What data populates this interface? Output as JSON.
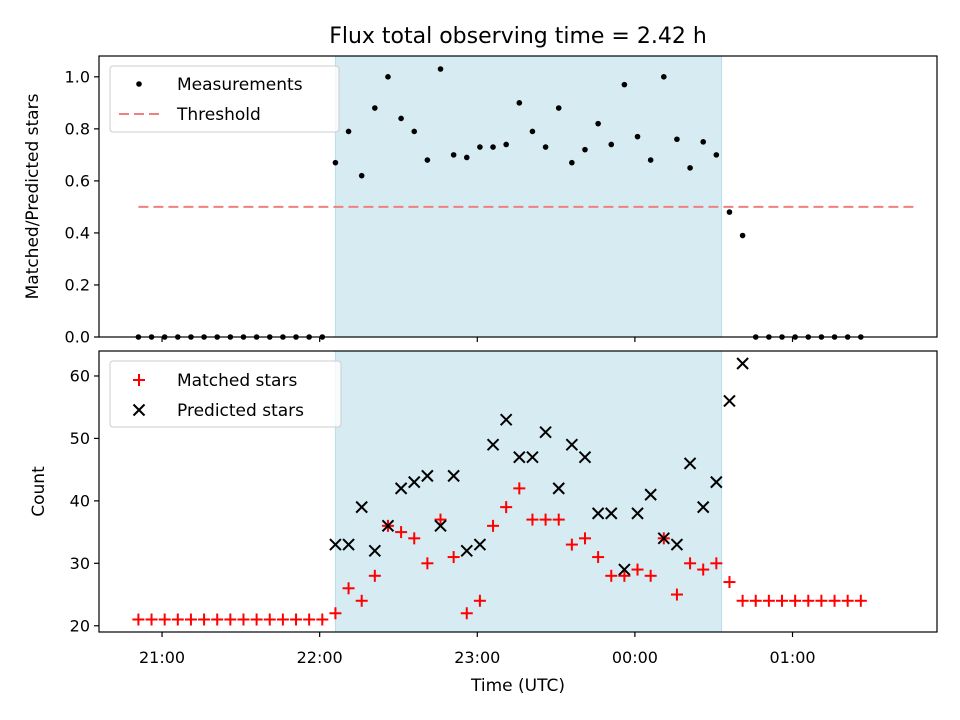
{
  "chart_data": [
    {
      "type": "scatter",
      "title": "Flux total observing time = 2.42 h",
      "xlabel": "",
      "ylabel": "Matched/Predicted stars",
      "x_range": [
        "20:36",
        "01:55"
      ],
      "ylim": [
        0,
        1.08
      ],
      "yticks": [
        "0.0",
        "0.2",
        "0.4",
        "0.6",
        "0.8",
        "1.0"
      ],
      "grid": false,
      "legend_position": "top-left",
      "shaded_span": [
        "22:06",
        "00:33"
      ],
      "threshold": {
        "name": "Threshold",
        "y": 0.5,
        "x_start": "20:51",
        "x_end": "01:46",
        "color": "#f08080"
      },
      "series": [
        {
          "name": "Measurements",
          "color": "#000000",
          "x": [
            "20:51",
            "20:56",
            "21:01",
            "21:06",
            "21:11",
            "21:16",
            "21:21",
            "21:26",
            "21:31",
            "21:36",
            "21:41",
            "21:46",
            "21:51",
            "21:56",
            "22:01",
            "22:06",
            "22:11",
            "22:16",
            "22:21",
            "22:26",
            "22:31",
            "22:36",
            "22:41",
            "22:46",
            "22:51",
            "22:56",
            "23:01",
            "23:06",
            "23:11",
            "23:16",
            "23:21",
            "23:26",
            "23:31",
            "23:36",
            "23:41",
            "23:46",
            "23:51",
            "23:56",
            "00:01",
            "00:06",
            "00:11",
            "00:16",
            "00:21",
            "00:26",
            "00:31",
            "00:36",
            "00:41",
            "00:46",
            "00:51",
            "00:56",
            "01:01",
            "01:06",
            "01:11",
            "01:16",
            "01:21",
            "01:26"
          ],
          "values": [
            0,
            0,
            0,
            0,
            0,
            0,
            0,
            0,
            0,
            0,
            0,
            0,
            0,
            0,
            0,
            0.67,
            0.79,
            0.62,
            0.88,
            1.0,
            0.84,
            0.79,
            0.68,
            1.03,
            0.7,
            0.69,
            0.73,
            0.73,
            0.74,
            0.9,
            0.79,
            0.73,
            0.88,
            0.67,
            0.72,
            0.82,
            0.74,
            0.97,
            0.77,
            0.68,
            1.0,
            0.76,
            0.65,
            0.75,
            0.7,
            0.48,
            0.39,
            0,
            0,
            0,
            0,
            0,
            0,
            0,
            0,
            0
          ]
        }
      ]
    },
    {
      "type": "scatter",
      "title": "",
      "xlabel": "Time (UTC)",
      "ylabel": "Count",
      "x_range": [
        "20:36",
        "01:55"
      ],
      "xticks": [
        "21:00",
        "22:00",
        "23:00",
        "00:00",
        "01:00"
      ],
      "ylim": [
        19,
        64
      ],
      "yticks": [
        "20",
        "30",
        "40",
        "50",
        "60"
      ],
      "grid": false,
      "legend_position": "top-left",
      "shaded_span": [
        "22:06",
        "00:33"
      ],
      "series": [
        {
          "name": "Matched stars",
          "marker": "plus",
          "color": "#ff0000",
          "x": [
            "20:51",
            "20:56",
            "21:01",
            "21:06",
            "21:11",
            "21:16",
            "21:21",
            "21:26",
            "21:31",
            "21:36",
            "21:41",
            "21:46",
            "21:51",
            "21:56",
            "22:01",
            "22:06",
            "22:11",
            "22:16",
            "22:21",
            "22:26",
            "22:31",
            "22:36",
            "22:41",
            "22:46",
            "22:51",
            "22:56",
            "23:01",
            "23:06",
            "23:11",
            "23:16",
            "23:21",
            "23:26",
            "23:31",
            "23:36",
            "23:41",
            "23:46",
            "23:51",
            "23:56",
            "00:01",
            "00:06",
            "00:11",
            "00:16",
            "00:21",
            "00:26",
            "00:31",
            "00:36",
            "00:41",
            "00:46",
            "00:51",
            "00:56",
            "01:01",
            "01:06",
            "01:11",
            "01:16",
            "01:21",
            "01:26"
          ],
          "values": [
            21,
            21,
            21,
            21,
            21,
            21,
            21,
            21,
            21,
            21,
            21,
            21,
            21,
            21,
            21,
            22,
            26,
            24,
            28,
            36,
            35,
            34,
            30,
            37,
            31,
            22,
            24,
            36,
            39,
            42,
            37,
            37,
            37,
            33,
            34,
            31,
            28,
            28,
            29,
            28,
            34,
            25,
            30,
            29,
            30,
            27,
            24,
            24,
            24,
            24,
            24,
            24,
            24,
            24,
            24,
            24
          ]
        },
        {
          "name": "Predicted stars",
          "marker": "x",
          "color": "#000000",
          "x": [
            "22:06",
            "22:11",
            "22:16",
            "22:21",
            "22:26",
            "22:31",
            "22:36",
            "22:41",
            "22:46",
            "22:51",
            "22:56",
            "23:01",
            "23:06",
            "23:11",
            "23:16",
            "23:21",
            "23:26",
            "23:31",
            "23:36",
            "23:41",
            "23:46",
            "23:51",
            "23:56",
            "00:01",
            "00:06",
            "00:11",
            "00:16",
            "00:21",
            "00:26",
            "00:31",
            "00:36",
            "00:41"
          ],
          "values": [
            33,
            33,
            39,
            32,
            36,
            42,
            43,
            44,
            36,
            44,
            32,
            33,
            49,
            53,
            47,
            47,
            51,
            42,
            49,
            47,
            38,
            38,
            29,
            38,
            41,
            34,
            33,
            46,
            39,
            43,
            56,
            62
          ]
        }
      ]
    }
  ]
}
